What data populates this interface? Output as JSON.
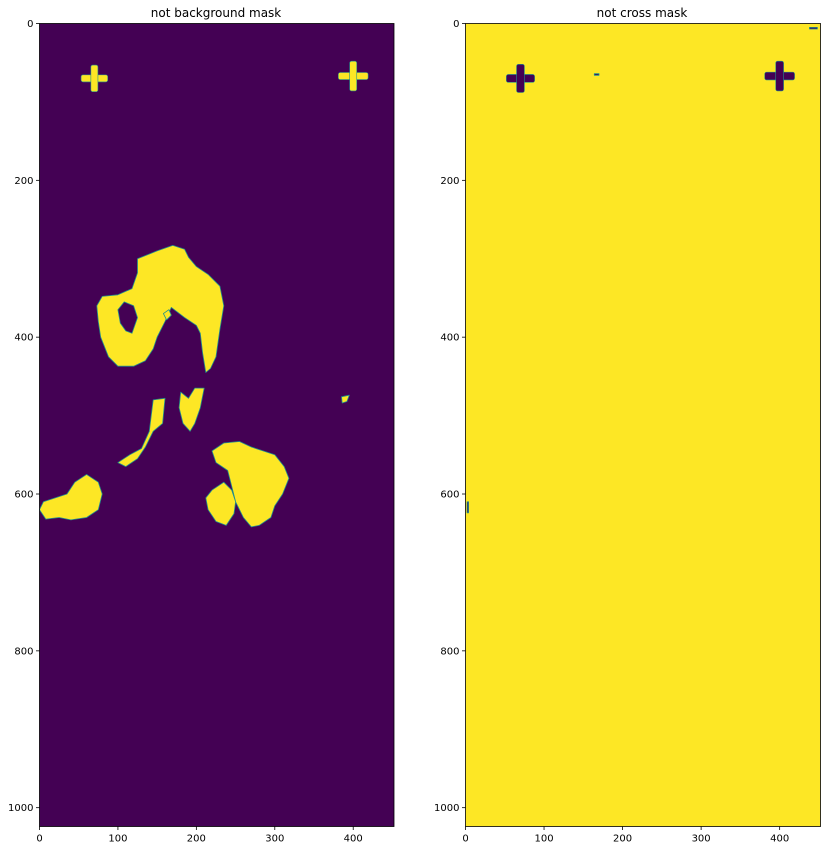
{
  "chart_data": [
    {
      "type": "heatmap",
      "title": "not background mask",
      "xlabel": "",
      "ylabel": "",
      "xlim": [
        0,
        452
      ],
      "ylim": [
        1024,
        0
      ],
      "xticks": [
        0,
        100,
        200,
        300,
        400
      ],
      "yticks": [
        0,
        200,
        400,
        600,
        800,
        1000
      ],
      "grid": false,
      "colors": {
        "low": "#440154",
        "high": "#fde725",
        "edge": "#21918c"
      },
      "mask_value_background": 0,
      "mask_value_region": 1,
      "regions": [
        {
          "shape": "cross",
          "center": [
            70,
            70
          ],
          "arm_length": 34,
          "arm_width": 9
        },
        {
          "shape": "cross",
          "center": [
            400,
            67
          ],
          "arm_length": 38,
          "arm_width": 9
        },
        {
          "shape": "polygon",
          "points": [
            [
              125,
              300
            ],
            [
              150,
              290
            ],
            [
              170,
              283
            ],
            [
              185,
              288
            ],
            [
              190,
              298
            ],
            [
              200,
              310
            ],
            [
              215,
              320
            ],
            [
              230,
              335
            ],
            [
              235,
              360
            ],
            [
              230,
              390
            ],
            [
              225,
              425
            ],
            [
              218,
              440
            ],
            [
              212,
              445
            ],
            [
              208,
              420
            ],
            [
              205,
              395
            ],
            [
              200,
              385
            ],
            [
              185,
              375
            ],
            [
              168,
              362
            ],
            [
              160,
              380
            ],
            [
              150,
              400
            ],
            [
              145,
              415
            ],
            [
              135,
              430
            ],
            [
              120,
              437
            ],
            [
              100,
              437
            ],
            [
              88,
              425
            ],
            [
              78,
              400
            ],
            [
              75,
              380
            ],
            [
              73,
              360
            ],
            [
              80,
              348
            ],
            [
              100,
              346
            ],
            [
              118,
              338
            ],
            [
              125,
              318
            ]
          ]
        },
        {
          "shape": "polygon",
          "points": [
            [
              100,
              365
            ],
            [
              108,
              355
            ],
            [
              120,
              360
            ],
            [
              125,
              375
            ],
            [
              118,
              395
            ],
            [
              110,
              392
            ],
            [
              103,
              382
            ]
          ],
          "value": 0
        },
        {
          "shape": "polygon",
          "points": [
            [
              145,
              480
            ],
            [
              160,
              478
            ],
            [
              157,
              510
            ],
            [
              145,
              520
            ],
            [
              135,
              540
            ],
            [
              125,
              555
            ],
            [
              110,
              565
            ],
            [
              100,
              560
            ],
            [
              115,
              550
            ],
            [
              130,
              542
            ],
            [
              140,
              520
            ]
          ]
        },
        {
          "shape": "polygon",
          "points": [
            [
              180,
              470
            ],
            [
              190,
              478
            ],
            [
              198,
              465
            ],
            [
              210,
              465
            ],
            [
              205,
              490
            ],
            [
              198,
              510
            ],
            [
              192,
              520
            ],
            [
              183,
              510
            ],
            [
              178,
              490
            ]
          ]
        },
        {
          "shape": "polygon",
          "points": [
            [
              235,
              535
            ],
            [
              255,
              533
            ],
            [
              270,
              540
            ],
            [
              285,
              545
            ],
            [
              300,
              550
            ],
            [
              312,
              565
            ],
            [
              318,
              580
            ],
            [
              310,
              600
            ],
            [
              300,
              615
            ],
            [
              295,
              630
            ],
            [
              280,
              640
            ],
            [
              270,
              642
            ],
            [
              260,
              630
            ],
            [
              250,
              610
            ],
            [
              245,
              590
            ],
            [
              240,
              570
            ],
            [
              225,
              560
            ],
            [
              220,
              545
            ]
          ]
        },
        {
          "shape": "polygon",
          "points": [
            [
              220,
              595
            ],
            [
              235,
              585
            ],
            [
              245,
              595
            ],
            [
              250,
              610
            ],
            [
              248,
              625
            ],
            [
              238,
              640
            ],
            [
              225,
              635
            ],
            [
              215,
              620
            ],
            [
              212,
              605
            ]
          ]
        },
        {
          "shape": "polygon",
          "points": [
            [
              45,
              585
            ],
            [
              60,
              575
            ],
            [
              75,
              585
            ],
            [
              80,
              600
            ],
            [
              75,
              620
            ],
            [
              60,
              630
            ],
            [
              40,
              633
            ],
            [
              25,
              630
            ],
            [
              8,
              632
            ],
            [
              0,
              620
            ],
            [
              5,
              610
            ],
            [
              20,
              605
            ],
            [
              35,
              600
            ]
          ]
        },
        {
          "shape": "polygon",
          "points": [
            [
              385,
              476
            ],
            [
              395,
              474
            ],
            [
              392,
              482
            ],
            [
              386,
              484
            ]
          ]
        },
        {
          "shape": "polygon",
          "points": [
            [
              158,
              370
            ],
            [
              165,
              365
            ],
            [
              168,
              372
            ],
            [
              162,
              378
            ]
          ]
        }
      ]
    },
    {
      "type": "heatmap",
      "title": "not cross mask",
      "xlabel": "",
      "ylabel": "",
      "xlim": [
        0,
        452
      ],
      "ylim": [
        1024,
        0
      ],
      "xticks": [
        0,
        100,
        200,
        300,
        400
      ],
      "yticks": [
        0,
        200,
        400,
        600,
        800,
        1000
      ],
      "grid": false,
      "colors": {
        "low": "#440154",
        "high": "#fde725",
        "edge": "#21918c"
      },
      "mask_value_background": 1,
      "mask_value_region": 0,
      "regions": [
        {
          "shape": "cross",
          "center": [
            70,
            70
          ],
          "arm_length": 36,
          "arm_width": 10
        },
        {
          "shape": "cross",
          "center": [
            400,
            67
          ],
          "arm_length": 38,
          "arm_width": 10
        },
        {
          "shape": "polygon",
          "points": [
            [
              164,
              64
            ],
            [
              170,
              64
            ],
            [
              170,
              66
            ],
            [
              164,
              66
            ]
          ]
        },
        {
          "shape": "polygon",
          "points": [
            [
              2,
              610
            ],
            [
              4,
              610
            ],
            [
              4,
              624
            ],
            [
              2,
              624
            ]
          ]
        },
        {
          "shape": "polygon",
          "points": [
            [
              438,
              5
            ],
            [
              448,
              5
            ],
            [
              448,
              7
            ],
            [
              438,
              7
            ]
          ]
        }
      ]
    }
  ]
}
